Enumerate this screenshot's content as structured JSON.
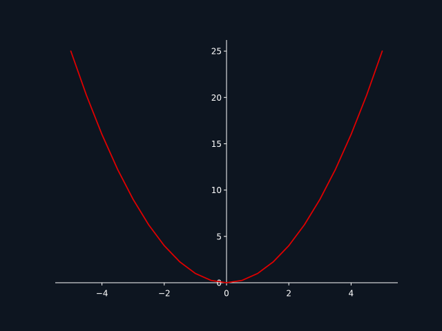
{
  "chart_data": {
    "type": "line",
    "x_range": [
      -5,
      5
    ],
    "y_range": [
      0,
      25
    ],
    "xlim": [
      -5.5,
      5.5
    ],
    "ylim": [
      -0.3,
      26.2
    ],
    "x_ticks": [
      -4,
      -2,
      0,
      2,
      4
    ],
    "y_ticks": [
      0,
      5,
      10,
      15,
      20,
      25
    ],
    "x_tick_labels": [
      "−4",
      "−2",
      "0",
      "2",
      "4"
    ],
    "y_tick_labels": [
      "0",
      "5",
      "10",
      "15",
      "20",
      "25"
    ],
    "series": [
      {
        "color": "#e00000",
        "x": [
          -5,
          -4.5,
          -4,
          -3.5,
          -3,
          -2.5,
          -2,
          -1.5,
          -1,
          -0.5,
          0,
          0.5,
          1,
          1.5,
          2,
          2.5,
          3,
          3.5,
          4,
          4.5,
          5
        ],
        "y": [
          25,
          20.25,
          16,
          12.25,
          9,
          6.25,
          4,
          2.25,
          1,
          0.25,
          0,
          0.25,
          1,
          2.25,
          4,
          6.25,
          9,
          12.25,
          16,
          20.25,
          25
        ]
      }
    ],
    "grid": false,
    "axis_style": "centered spines at zero",
    "background_color": "#0d1520",
    "axis_color": "#ffffff"
  }
}
